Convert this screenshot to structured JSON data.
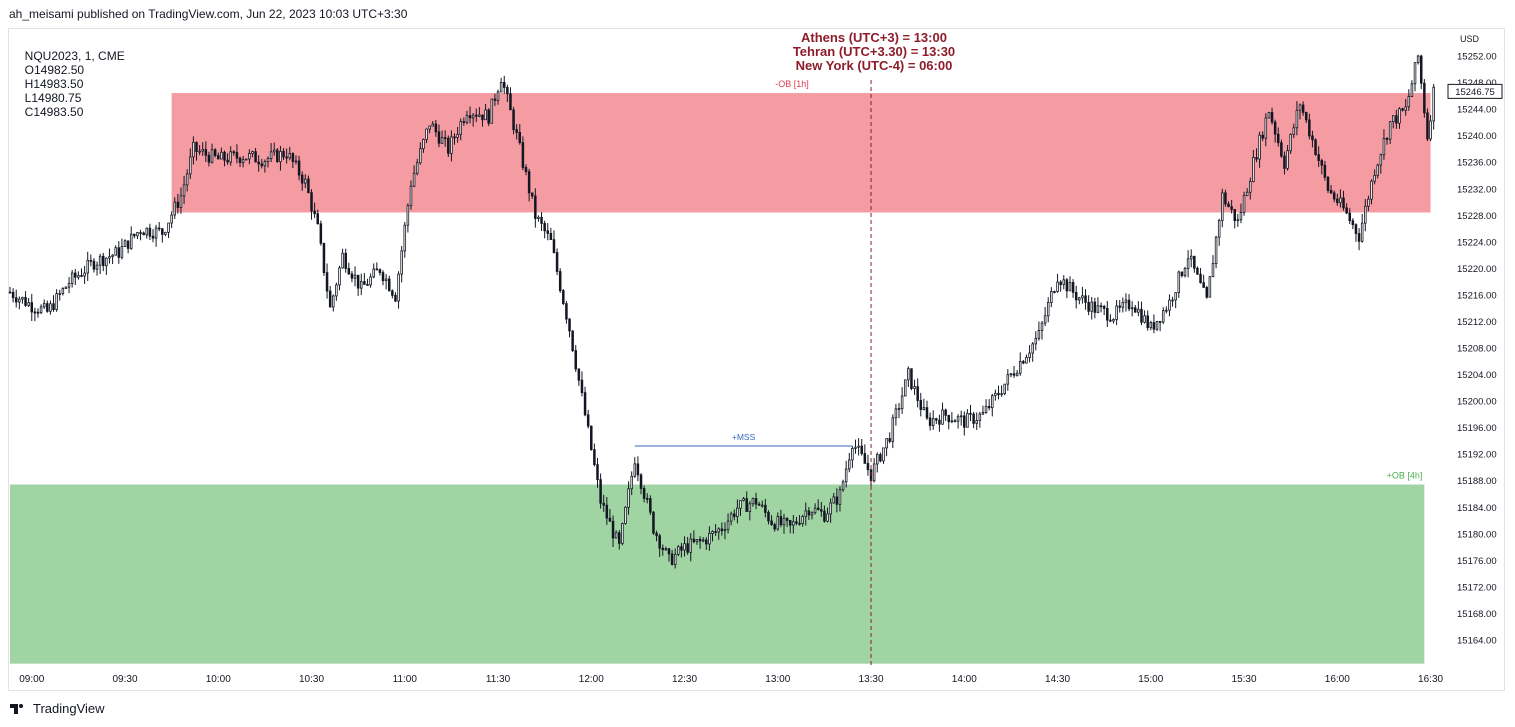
{
  "header": {
    "publisher": "ah_meisami published on TradingView.com, Jun 22, 2023 10:03 UTC+3:30"
  },
  "legend": {
    "symbol": "NQU2023, 1, CME",
    "open": "O14982.50",
    "high": "H14983.50",
    "low": "L14980.75",
    "close": "C14983.50"
  },
  "timezone_note": {
    "line1": "Athens (UTC+3) = 13:00",
    "line2": "Tehran (UTC+3.30) = 13:30",
    "line3": "New York (UTC-4) = 06:00"
  },
  "footer": {
    "brand": "TradingView"
  },
  "colors": {
    "bearish_zone": "#f59ca3",
    "bullish_zone": "#a1d4a3",
    "zone_label_red": "#e0394f",
    "zone_label_green": "#4caf50",
    "mss_line": "#3a66c4",
    "vline": "#8e1c2a",
    "candle": "#131722"
  },
  "chart_data": {
    "type": "candlestick",
    "currency": "USD",
    "ylim": [
      15160,
      15256
    ],
    "yticks": [
      15164,
      15168,
      15172,
      15176,
      15180,
      15184,
      15188,
      15192,
      15196,
      15200,
      15204,
      15208,
      15212,
      15216,
      15220,
      15224,
      15228,
      15232,
      15236,
      15240,
      15244,
      15248,
      15252
    ],
    "ytick_labels": [
      "15164.00",
      "15168.00",
      "15172.00",
      "15176.00",
      "15180.00",
      "15184.00",
      "15188.00",
      "15192.00",
      "15196.00",
      "15200.00",
      "15204.00",
      "15208.00",
      "15212.00",
      "15216.00",
      "15220.00",
      "15224.00",
      "15228.00",
      "15232.00",
      "15236.00",
      "15240.00",
      "15244.00",
      "15248.00",
      "15252.00"
    ],
    "xlim": [
      "08:53",
      "16:34"
    ],
    "xticks": [
      "09:00",
      "09:30",
      "10:00",
      "10:30",
      "11:00",
      "11:30",
      "12:00",
      "12:30",
      "13:00",
      "13:30",
      "14:00",
      "14:30",
      "15:00",
      "15:30",
      "16:00",
      "16:30"
    ],
    "last_price": 15246.75,
    "last_price_label": "15246.75",
    "zones": [
      {
        "label": "-OB [1h]",
        "kind": "bearish",
        "start": "09:45",
        "end": "16:30",
        "top": 15246.5,
        "bottom": 15228.5
      },
      {
        "label": "+OB [4h]",
        "kind": "bullish",
        "start": "08:53",
        "end": "16:28",
        "top": 15187.5,
        "bottom": 15160.5
      }
    ],
    "mss": {
      "label": "+MSS",
      "start": "12:14",
      "end": "13:24",
      "price": 15193.3
    },
    "vertical_line_time": "13:30",
    "price_path": [
      [
        "08:53",
        15216.5
      ],
      [
        "09:00",
        15214.5
      ],
      [
        "09:05",
        15213.5
      ],
      [
        "09:12",
        15218.0
      ],
      [
        "09:20",
        15221.0
      ],
      [
        "09:28",
        15222.5
      ],
      [
        "09:35",
        15226.0
      ],
      [
        "09:42",
        15225.5
      ],
      [
        "09:48",
        15231.0
      ],
      [
        "09:52",
        15238.0
      ],
      [
        "10:00",
        15236.5
      ],
      [
        "10:08",
        15237.0
      ],
      [
        "10:15",
        15236.5
      ],
      [
        "10:22",
        15237.5
      ],
      [
        "10:28",
        15233.0
      ],
      [
        "10:32",
        15226.0
      ],
      [
        "10:36",
        15214.0
      ],
      [
        "10:40",
        15222.0
      ],
      [
        "10:46",
        15217.0
      ],
      [
        "10:52",
        15220.0
      ],
      [
        "10:57",
        15216.0
      ],
      [
        "11:02",
        15233.0
      ],
      [
        "11:08",
        15242.0
      ],
      [
        "11:14",
        15238.0
      ],
      [
        "11:20",
        15244.0
      ],
      [
        "11:27",
        15243.0
      ],
      [
        "11:31",
        15249.0
      ],
      [
        "11:36",
        15240.0
      ],
      [
        "11:42",
        15228.0
      ],
      [
        "11:47",
        15224.0
      ],
      [
        "11:53",
        15211.0
      ],
      [
        "11:58",
        15198.0
      ],
      [
        "12:03",
        15185.0
      ],
      [
        "12:09",
        15178.0
      ],
      [
        "12:14",
        15191.5
      ],
      [
        "12:20",
        15181.0
      ],
      [
        "12:25",
        15176.0
      ],
      [
        "12:30",
        15178.0
      ],
      [
        "12:36",
        15179.0
      ],
      [
        "12:42",
        15181.0
      ],
      [
        "12:47",
        15184.0
      ],
      [
        "12:53",
        15185.0
      ],
      [
        "12:58",
        15182.0
      ],
      [
        "13:04",
        15181.0
      ],
      [
        "13:10",
        15184.0
      ],
      [
        "13:15",
        15183.0
      ],
      [
        "13:20",
        15186.0
      ],
      [
        "13:24",
        15194.0
      ],
      [
        "13:30",
        15189.0
      ],
      [
        "13:36",
        15195.0
      ],
      [
        "13:42",
        15204.0
      ],
      [
        "13:48",
        15197.0
      ],
      [
        "13:54",
        15198.0
      ],
      [
        "14:00",
        15197.0
      ],
      [
        "14:06",
        15198.0
      ],
      [
        "14:12",
        15202.0
      ],
      [
        "14:18",
        15206.0
      ],
      [
        "14:24",
        15210.0
      ],
      [
        "14:30",
        15219.0
      ],
      [
        "14:36",
        15216.0
      ],
      [
        "14:42",
        15214.0
      ],
      [
        "14:48",
        15213.0
      ],
      [
        "14:54",
        15215.0
      ],
      [
        "15:00",
        15211.0
      ],
      [
        "15:06",
        15215.0
      ],
      [
        "15:12",
        15222.0
      ],
      [
        "15:18",
        15215.0
      ],
      [
        "15:23",
        15231.0
      ],
      [
        "15:28",
        15227.0
      ],
      [
        "15:33",
        15236.0
      ],
      [
        "15:38",
        15244.0
      ],
      [
        "15:43",
        15236.0
      ],
      [
        "15:48",
        15245.0
      ],
      [
        "15:53",
        15238.0
      ],
      [
        "15:57",
        15232.0
      ],
      [
        "16:02",
        15229.0
      ],
      [
        "16:07",
        15225.0
      ],
      [
        "16:12",
        15235.0
      ],
      [
        "16:17",
        15242.0
      ],
      [
        "16:22",
        15244.0
      ],
      [
        "16:26",
        15252.0
      ],
      [
        "16:29",
        15240.0
      ],
      [
        "16:31",
        15246.75
      ]
    ]
  }
}
